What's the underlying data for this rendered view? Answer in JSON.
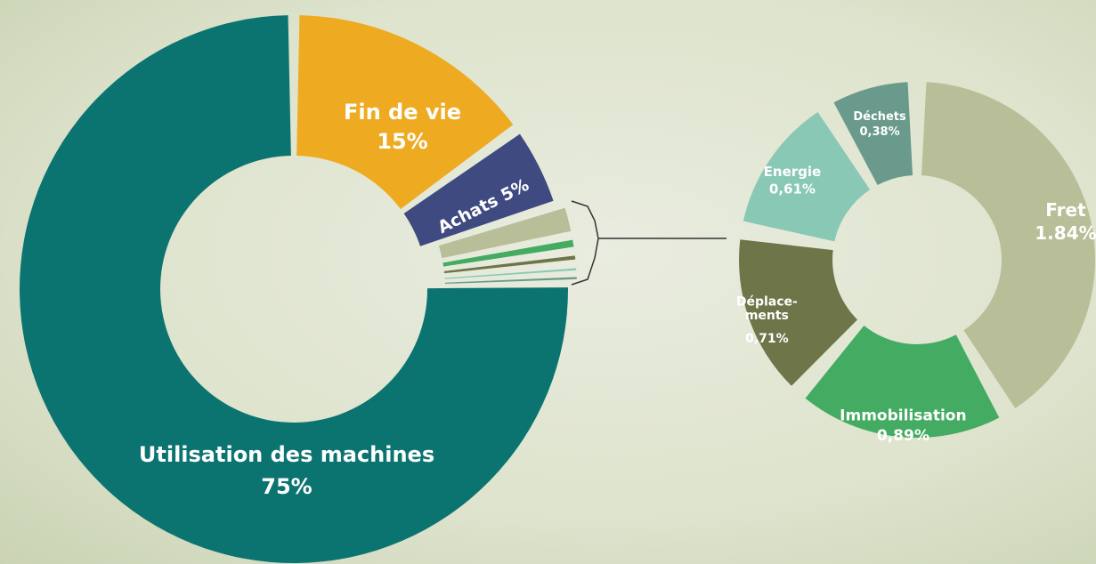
{
  "chart_data": [
    {
      "type": "donut",
      "categories": [
        "Utilisation des machines",
        "Fin de vie",
        "Achats"
      ],
      "values": [
        75,
        15,
        5
      ],
      "value_labels": [
        "75%",
        "15%",
        "5%"
      ],
      "colors": [
        "#0b7471",
        "#eeab22",
        "#3f4a80"
      ]
    },
    {
      "type": "donut",
      "categories": [
        "Fret",
        "Immobilisation",
        "Déplace-\nments",
        "Energie",
        "Déchets"
      ],
      "values": [
        1.84,
        0.89,
        0.71,
        0.61,
        0.38
      ],
      "value_labels": [
        "1.84%",
        "0,89%",
        "0,71%",
        "0,61%",
        "0,38%"
      ],
      "colors": [
        "#b8bf98",
        "#44ab62",
        "#6e7548",
        "#88c8b5",
        "#6a9a8b"
      ]
    }
  ]
}
